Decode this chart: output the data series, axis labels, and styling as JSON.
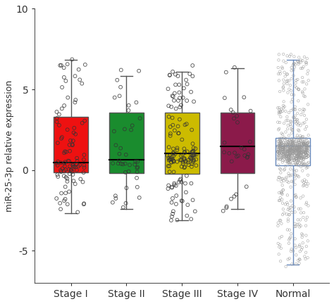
{
  "categories": [
    "Stage I",
    "Stage II",
    "Stage III",
    "Stage IV",
    "Normal"
  ],
  "box_colors": [
    "#EE1111",
    "#1A8C2E",
    "#CCBB00",
    "#8B1A4A",
    "#FFFFFF"
  ],
  "box_edge_colors": [
    "#555555",
    "#555555",
    "#555555",
    "#555555",
    "#6688BB"
  ],
  "whisker_colors": [
    "#555555",
    "#555555",
    "#555555",
    "#555555",
    "#6688BB"
  ],
  "scatter_facecolors": [
    "none",
    "none",
    "none",
    "none",
    "none"
  ],
  "scatter_edgecolors": [
    "#333333",
    "#333333",
    "#333333",
    "#333333",
    "#999999"
  ],
  "ylabel": "miR-25-3p relative expression",
  "ylim": [
    -7,
    10
  ],
  "yticks": [
    -5,
    0,
    5,
    10
  ],
  "stats": {
    "Stage I": {
      "q1": -0.15,
      "median": 0.45,
      "q3": 3.3,
      "whislo": -2.7,
      "whishi": 6.85,
      "n": 100
    },
    "Stage II": {
      "q1": -0.2,
      "median": 0.65,
      "q3": 3.55,
      "whislo": -2.4,
      "whishi": 5.85,
      "n": 40
    },
    "Stage III": {
      "q1": -0.25,
      "median": 1.05,
      "q3": 3.55,
      "whislo": -3.1,
      "whishi": 6.1,
      "n": 150
    },
    "Stage IV": {
      "q1": -0.2,
      "median": 1.45,
      "q3": 3.55,
      "whislo": -2.4,
      "whishi": 6.3,
      "n": 30
    },
    "Normal": {
      "q1": 0.3,
      "median": 1.5,
      "q3": 2.0,
      "whislo": -5.85,
      "whishi": 6.85,
      "n": 800
    }
  },
  "background_color": "#FFFFFF",
  "figsize": [
    4.74,
    4.32
  ],
  "dpi": 100
}
